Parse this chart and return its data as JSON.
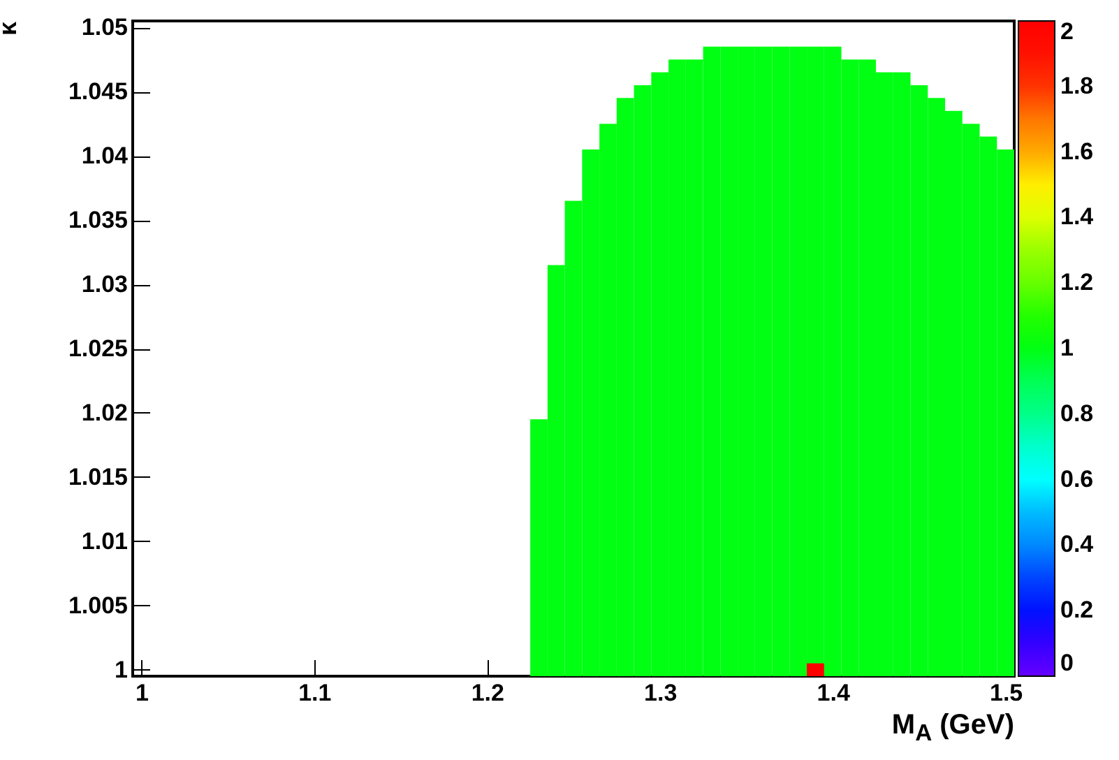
{
  "chart_data": {
    "type": "bar",
    "xlabel": "M$_{A}$ (GeV)",
    "ylabel": "κ",
    "xlim": [
      0.995,
      1.505
    ],
    "xticks": [
      1,
      1.1,
      1.2,
      1.3,
      1.4,
      1.5
    ],
    "ylim": [
      0.9995,
      1.0505
    ],
    "yticks": [
      1,
      1.005,
      1.01,
      1.015,
      1.02,
      1.025,
      1.03,
      1.035,
      1.04,
      1.045,
      1.05
    ],
    "clim": [
      0,
      2
    ],
    "cticks": [
      0,
      0.2,
      0.4,
      0.6,
      0.8,
      1,
      1.2,
      1.4,
      1.6,
      1.8,
      2
    ],
    "series": [
      {
        "x": [
          1.23,
          1.24,
          1.25,
          1.26,
          1.27,
          1.28,
          1.29,
          1.3,
          1.31,
          1.32,
          1.33,
          1.34,
          1.35,
          1.36,
          1.37,
          1.38,
          1.39,
          1.4,
          1.41,
          1.42,
          1.43,
          1.44,
          1.45,
          1.46,
          1.47,
          1.48,
          1.49,
          1.5
        ],
        "base": [
          0.9995,
          0.9995,
          0.9995,
          0.9995,
          0.9995,
          0.9995,
          0.9995,
          0.9995,
          0.9995,
          0.9995,
          0.9995,
          0.9995,
          0.9995,
          0.9995,
          0.9995,
          0.9995,
          0.9995,
          0.9995,
          0.9995,
          0.9995,
          0.9995,
          0.9995,
          0.9995,
          0.9995,
          0.9995,
          0.9995,
          0.9995,
          0.9995
        ],
        "values": [
          0.02,
          0.032,
          0.037,
          0.041,
          0.043,
          0.045,
          0.046,
          0.047,
          0.048,
          0.048,
          0.049,
          0.049,
          0.049,
          0.049,
          0.049,
          0.049,
          0.049,
          0.049,
          0.048,
          0.048,
          0.047,
          0.047,
          0.046,
          0.045,
          0.044,
          0.043,
          0.042,
          0.041
        ],
        "cvalues": [
          1,
          1,
          1,
          1,
          1,
          1,
          1,
          1,
          1,
          1,
          1,
          1,
          1,
          1,
          1,
          1,
          1,
          1,
          1,
          1,
          1,
          1,
          1,
          1,
          1,
          1,
          1,
          1
        ]
      },
      {
        "x": [
          1.39
        ],
        "base": [
          0.9995
        ],
        "values": [
          0.001
        ],
        "cvalues": [
          2
        ]
      }
    ]
  }
}
